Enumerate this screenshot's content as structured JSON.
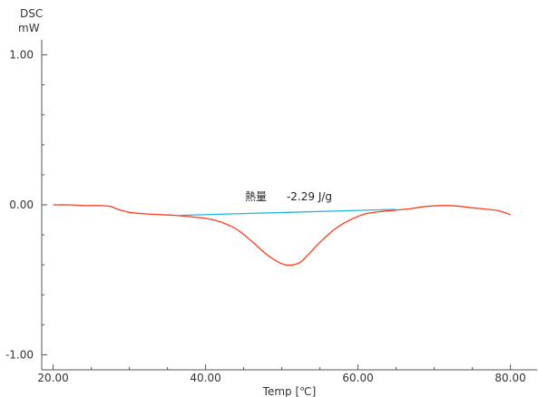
{
  "chart_data": {
    "type": "line",
    "y_axis_title_line1": "DSC",
    "y_axis_title_line2": "mW",
    "xlabel": "Temp [℃]",
    "xlim": [
      18.5,
      83.5
    ],
    "ylim": [
      -1.1,
      1.1
    ],
    "x_ticks": [
      20,
      40,
      60,
      80
    ],
    "x_tick_labels": [
      "20.00",
      "40.00",
      "60.00",
      "80.00"
    ],
    "y_ticks": [
      1,
      0,
      -1
    ],
    "y_tick_labels": [
      "1.00",
      "0.00",
      "-1.00"
    ],
    "x_minor_ticks": [
      25,
      30,
      35,
      45,
      50,
      55,
      65,
      70,
      75
    ],
    "y_minor_ticks": [
      0.8,
      0.6,
      0.4,
      0.2,
      -0.2,
      -0.4,
      -0.6,
      -0.8
    ],
    "series": [
      {
        "color": "#ff3b1f",
        "x": [
          20,
          22,
          24,
          26,
          27.5,
          28.5,
          30,
          32,
          34,
          36,
          38,
          40,
          42,
          44,
          46,
          48,
          49.5,
          50.5,
          51.5,
          52.5,
          53.5,
          55,
          57,
          59,
          61,
          63,
          65,
          67,
          69,
          71,
          73,
          75,
          77,
          78.5,
          80
        ],
        "y": [
          0.0,
          0.0,
          -0.005,
          -0.005,
          -0.01,
          -0.03,
          -0.05,
          -0.06,
          -0.065,
          -0.07,
          -0.08,
          -0.09,
          -0.115,
          -0.16,
          -0.24,
          -0.33,
          -0.38,
          -0.4,
          -0.4,
          -0.38,
          -0.33,
          -0.25,
          -0.16,
          -0.1,
          -0.06,
          -0.045,
          -0.035,
          -0.025,
          -0.01,
          -0.005,
          -0.008,
          -0.02,
          -0.03,
          -0.04,
          -0.065
        ]
      },
      {
        "color": "#1fb3e6",
        "x": [
          36.5,
          65
        ],
        "y": [
          -0.07,
          -0.03
        ]
      }
    ],
    "annotation": {
      "label": "熱量",
      "value": "-2.29 J/g",
      "x": 51,
      "y": 0.03
    },
    "grid": false
  },
  "colors": {
    "axis": "#555555",
    "curve": "#ff3b1f",
    "baseline": "#1fb3e6"
  }
}
